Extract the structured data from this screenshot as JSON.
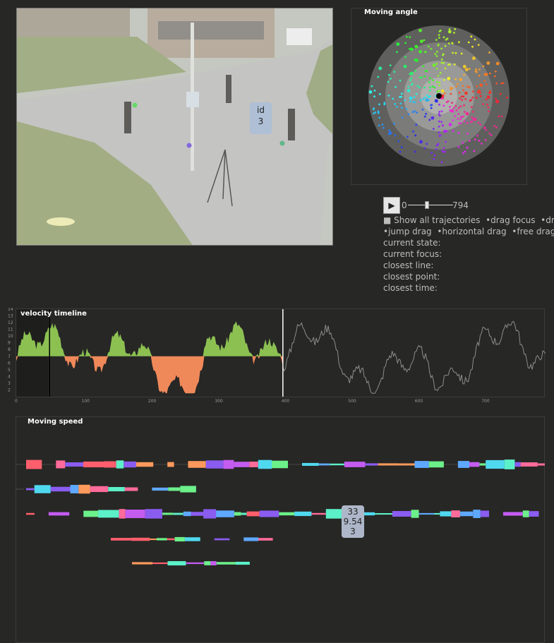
{
  "video": {
    "id_label": "id",
    "id_value": "3"
  },
  "angle": {
    "title": "Moving angle"
  },
  "controls": {
    "play_symbol": "▶",
    "slider_min": "0",
    "slider_max": "794",
    "show_all_label": "■ Show all trajectories",
    "drag_focus": "drag focus",
    "drag_partial": "drag",
    "jump_drag": "jump drag",
    "horizontal_drag": "horizontal drag",
    "free_drag": "free drag",
    "current_state": "current state:",
    "current_focus": "current focus:",
    "closest_line": "closest line:",
    "closest_point": "closest point:",
    "closest_time": "closest time:"
  },
  "timeline": {
    "title": "velocity timeline",
    "y_ticks": [
      "14",
      "13",
      "12",
      "11",
      "10",
      "9",
      "8",
      "7",
      "6",
      "5",
      "4",
      "3",
      "2"
    ],
    "x_ticks": [
      "0",
      "100",
      "200",
      "300",
      "400",
      "500",
      "600",
      "700"
    ],
    "cursor_frame": 400,
    "focus_frame": 50
  },
  "speed": {
    "title": "Moving speed",
    "tooltip": {
      "id": "33",
      "speed": "9.54",
      "count": "3"
    }
  },
  "colors": {
    "background": "#272725",
    "positive_fill": "#8cc152",
    "negative_fill": "#f0895a",
    "cursor": "#ffffff"
  }
}
